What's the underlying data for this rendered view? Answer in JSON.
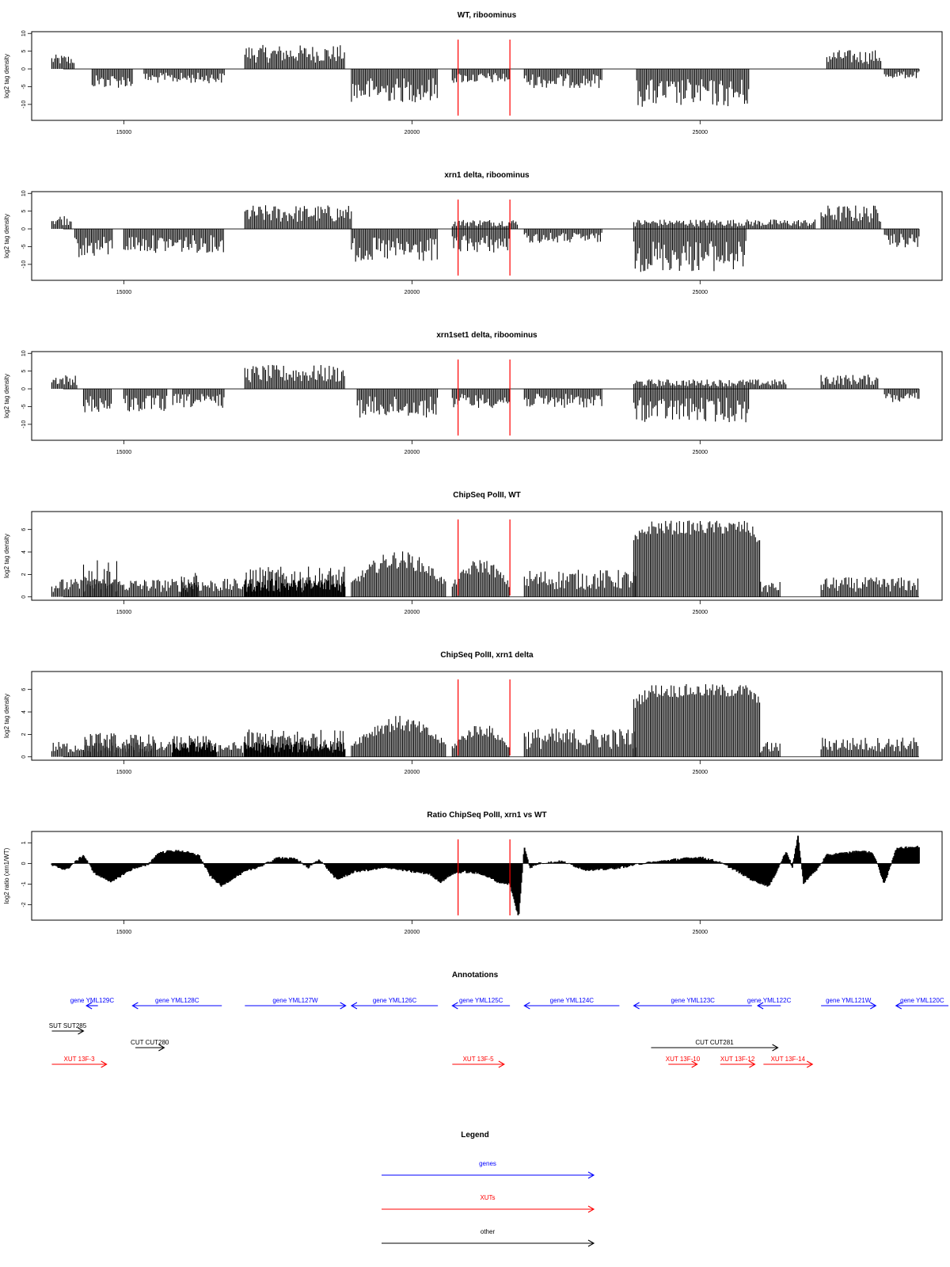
{
  "colors": {
    "gene": "#0000ff",
    "xut": "#ff0000",
    "other": "#000000",
    "marker": "#ff0000",
    "bars": "#000000"
  },
  "chart_data": [
    {
      "type": "bar",
      "title": "WT, riboominus",
      "ylabel": "log2 tag density",
      "xlim": [
        13400,
        29200
      ],
      "ylim": [
        -14.5,
        10.5
      ],
      "x_ticks": [
        15000,
        20000,
        25000
      ],
      "y_ticks": [
        -10,
        -5,
        0,
        5,
        10
      ],
      "markers": [
        20800,
        21700
      ],
      "segments": [
        {
          "x": [
            13750,
            14150
          ],
          "level": 3
        },
        {
          "x": [
            14450,
            15150
          ],
          "level": -4
        },
        {
          "x": [
            15350,
            16750
          ],
          "level": -3
        },
        {
          "x": [
            17100,
            18850
          ],
          "level": 5
        },
        {
          "x": [
            18950,
            20450
          ],
          "level": -7
        },
        {
          "x": [
            20700,
            21700
          ],
          "level": -3
        },
        {
          "x": [
            21950,
            23300
          ],
          "level": -4
        },
        {
          "x": [
            23900,
            25850
          ],
          "level": -8
        },
        {
          "x": [
            27200,
            28150
          ],
          "level": 4
        },
        {
          "x": [
            28200,
            28800
          ],
          "level": -2
        }
      ]
    },
    {
      "type": "bar",
      "title": "xrn1 delta, riboominus",
      "ylabel": "log2 tag density",
      "xlim": [
        13400,
        29200
      ],
      "ylim": [
        -14.5,
        10.5
      ],
      "x_ticks": [
        15000,
        20000,
        25000
      ],
      "y_ticks": [
        -10,
        -5,
        0,
        5,
        10
      ],
      "markers": [
        20800,
        21700
      ],
      "segments": [
        {
          "x": [
            13750,
            14100
          ],
          "level": 3
        },
        {
          "x": [
            14150,
            14800
          ],
          "level": -6
        },
        {
          "x": [
            15000,
            16750
          ],
          "level": -5
        },
        {
          "x": [
            17100,
            18950
          ],
          "level": 5
        },
        {
          "x": [
            18950,
            20450
          ],
          "level": -7
        },
        {
          "x": [
            20700,
            21850
          ],
          "level": 2
        },
        {
          "x": [
            20700,
            21700
          ],
          "level": -5
        },
        {
          "x": [
            21950,
            23300
          ],
          "level": -3
        },
        {
          "x": [
            23850,
            25800
          ],
          "level": -9
        },
        {
          "x": [
            23850,
            27000
          ],
          "level": 2
        },
        {
          "x": [
            27100,
            28150
          ],
          "level": 5
        },
        {
          "x": [
            28200,
            28800
          ],
          "level": -4
        }
      ]
    },
    {
      "type": "bar",
      "title": "xrn1set1 delta, riboominus",
      "ylabel": "log2 tag density",
      "xlim": [
        13400,
        29200
      ],
      "ylim": [
        -14.5,
        10.5
      ],
      "x_ticks": [
        15000,
        20000,
        25000
      ],
      "y_ticks": [
        -10,
        -5,
        0,
        5,
        10
      ],
      "markers": [
        20800,
        21700
      ],
      "segments": [
        {
          "x": [
            13750,
            14200
          ],
          "level": 3
        },
        {
          "x": [
            14300,
            14800
          ],
          "level": -5
        },
        {
          "x": [
            15000,
            15750
          ],
          "level": -5
        },
        {
          "x": [
            15850,
            16750
          ],
          "level": -4
        },
        {
          "x": [
            17100,
            18850
          ],
          "level": 5
        },
        {
          "x": [
            19050,
            20450
          ],
          "level": -6
        },
        {
          "x": [
            20700,
            21700
          ],
          "level": -4
        },
        {
          "x": [
            21950,
            23300
          ],
          "level": -4
        },
        {
          "x": [
            23850,
            25850
          ],
          "level": -7
        },
        {
          "x": [
            23850,
            26500
          ],
          "level": 2
        },
        {
          "x": [
            27100,
            28100
          ],
          "level": 3
        },
        {
          "x": [
            28200,
            28800
          ],
          "level": -3
        }
      ]
    },
    {
      "type": "bar",
      "title": "ChipSeq PolII, WT",
      "ylabel": "log2 tag density",
      "xlim": [
        13400,
        29200
      ],
      "ylim": [
        -0.3,
        7.6
      ],
      "x_ticks": [
        15000,
        20000,
        25000
      ],
      "y_ticks": [
        0,
        2,
        4,
        6
      ],
      "markers": [
        20800,
        21700
      ],
      "segments": [
        {
          "x": [
            13750,
            18850
          ],
          "level": 1.2
        },
        {
          "x": [
            14300,
            14900
          ],
          "level": 2.6
        },
        {
          "x": [
            16000,
            16300
          ],
          "level": 1.6
        },
        {
          "x": [
            17100,
            18850
          ],
          "level": 2.0
        },
        {
          "x": [
            18950,
            20600
          ],
          "level": 3.6,
          "shape": "dome"
        },
        {
          "x": [
            20700,
            21700
          ],
          "level": 3.0,
          "shape": "dome"
        },
        {
          "x": [
            21950,
            23900
          ],
          "level": 1.8
        },
        {
          "x": [
            23850,
            26050
          ],
          "level": 6.3,
          "shape": "plateau"
        },
        {
          "x": [
            26050,
            26400
          ],
          "level": 1.0
        },
        {
          "x": [
            27100,
            28800
          ],
          "level": 1.3
        }
      ]
    },
    {
      "type": "bar",
      "title": "ChipSeq PolII, xrn1 delta",
      "ylabel": "log2 tag density",
      "xlim": [
        13400,
        29200
      ],
      "ylim": [
        -0.3,
        7.6
      ],
      "x_ticks": [
        15000,
        20000,
        25000
      ],
      "y_ticks": [
        0,
        2,
        4,
        6
      ],
      "markers": [
        20800,
        21700
      ],
      "segments": [
        {
          "x": [
            13750,
            18850
          ],
          "level": 1.0
        },
        {
          "x": [
            14300,
            14900
          ],
          "level": 1.6
        },
        {
          "x": [
            15000,
            15550
          ],
          "level": 1.5
        },
        {
          "x": [
            15850,
            16600
          ],
          "level": 1.4
        },
        {
          "x": [
            17100,
            18850
          ],
          "level": 1.8
        },
        {
          "x": [
            18950,
            20600
          ],
          "level": 3.2,
          "shape": "dome"
        },
        {
          "x": [
            20700,
            21700
          ],
          "level": 2.6,
          "shape": "dome"
        },
        {
          "x": [
            21950,
            23900
          ],
          "level": 1.9
        },
        {
          "x": [
            23850,
            26050
          ],
          "level": 6.0,
          "shape": "plateau"
        },
        {
          "x": [
            26050,
            26400
          ],
          "level": 1.0
        },
        {
          "x": [
            27100,
            28800
          ],
          "level": 1.3
        }
      ]
    },
    {
      "type": "area",
      "title": "Ratio ChipSeq PolII, xrn1 vs WT",
      "ylabel": "log2 ratio (xrn1/WT)",
      "xlim": [
        13400,
        29200
      ],
      "ylim": [
        -2.75,
        1.55
      ],
      "x_ticks": [
        15000,
        20000,
        25000
      ],
      "y_ticks": [
        -2,
        -1,
        0,
        1
      ],
      "markers": [
        20800,
        21700
      ],
      "series": [
        {
          "x": [
            13750,
            14000,
            14300,
            14500,
            14800,
            15000,
            15200,
            15400,
            15600,
            15800,
            16000,
            16300,
            16500,
            16700,
            16900,
            17100,
            17400,
            17700,
            18000,
            18200,
            18400,
            18700,
            19000,
            19300,
            19600,
            20000,
            20300,
            20500,
            20700,
            20900,
            21200,
            21500,
            21700,
            21850,
            21950,
            22050,
            22200,
            22600,
            23000,
            23300,
            23600,
            24000,
            24300,
            24600,
            25000,
            25300,
            25600,
            25900,
            26200,
            26500,
            26600,
            26700,
            26800,
            26900,
            27000,
            27200,
            27500,
            27800,
            28000,
            28100,
            28200,
            28400,
            28600,
            28800
          ],
          "values": [
            -0.1,
            -0.3,
            0.4,
            -0.5,
            -0.9,
            -0.5,
            -0.2,
            -0.1,
            0.5,
            0.6,
            0.6,
            0.4,
            -0.6,
            -1.1,
            -0.7,
            -0.4,
            -0.1,
            0.3,
            0.2,
            -0.2,
            0.2,
            -0.8,
            -0.4,
            -0.3,
            -0.2,
            -0.4,
            -0.5,
            -0.9,
            -0.5,
            -0.4,
            -0.5,
            -0.9,
            -1.0,
            -2.6,
            0.8,
            -0.2,
            0.0,
            0.1,
            -0.3,
            -0.3,
            -0.2,
            0.0,
            0.1,
            0.2,
            0.3,
            0.1,
            -0.3,
            -0.8,
            -1.1,
            0.6,
            -0.2,
            1.3,
            -1.0,
            -0.6,
            -0.4,
            0.4,
            0.5,
            0.6,
            0.5,
            -0.2,
            -1.0,
            0.7,
            0.8,
            0.8
          ]
        }
      ]
    }
  ],
  "annotations": {
    "title": "Annotations",
    "items": [
      {
        "label": "gene YML129C",
        "kind": "gene",
        "dir": -1,
        "x": [
          14350,
          14550
        ],
        "row": 0
      },
      {
        "label": "gene YML128C",
        "kind": "gene",
        "dir": -1,
        "x": [
          15150,
          16700
        ],
        "row": 0
      },
      {
        "label": "gene YML127W",
        "kind": "gene",
        "dir": 1,
        "x": [
          17100,
          18850
        ],
        "row": 0
      },
      {
        "label": "gene YML126C",
        "kind": "gene",
        "dir": -1,
        "x": [
          18950,
          20450
        ],
        "row": 0
      },
      {
        "label": "gene YML125C",
        "kind": "gene",
        "dir": -1,
        "x": [
          20700,
          21700
        ],
        "row": 0
      },
      {
        "label": "gene YML124C",
        "kind": "gene",
        "dir": -1,
        "x": [
          21950,
          23600
        ],
        "row": 0
      },
      {
        "label": "gene YML123C",
        "kind": "gene",
        "dir": -1,
        "x": [
          23850,
          25900
        ],
        "row": 0
      },
      {
        "label": "gene YML122C",
        "kind": "gene",
        "dir": -1,
        "x": [
          26000,
          26400
        ],
        "row": 0
      },
      {
        "label": "gene YML121W",
        "kind": "gene",
        "dir": 1,
        "x": [
          27100,
          28050
        ],
        "row": 0
      },
      {
        "label": "gene YML120C",
        "kind": "gene",
        "dir": -1,
        "x": [
          28400,
          29400
        ],
        "row": 0
      },
      {
        "label": "SUT SUT285",
        "kind": "other",
        "dir": 1,
        "x": [
          13750,
          14300
        ],
        "row": 1
      },
      {
        "label": "CUT CUT280",
        "kind": "other",
        "dir": 1,
        "x": [
          15200,
          15700
        ],
        "row": 2
      },
      {
        "label": "CUT CUT281",
        "kind": "other",
        "dir": 1,
        "x": [
          24150,
          26350
        ],
        "row": 2
      },
      {
        "label": "XUT 13F-3",
        "kind": "xut",
        "dir": 1,
        "x": [
          13750,
          14700
        ],
        "row": 3
      },
      {
        "label": "XUT 13F-5",
        "kind": "xut",
        "dir": 1,
        "x": [
          20700,
          21600
        ],
        "row": 3
      },
      {
        "label": "XUT 13F-10",
        "kind": "xut",
        "dir": 1,
        "x": [
          24450,
          24950
        ],
        "row": 3
      },
      {
        "label": "XUT 13F-12",
        "kind": "xut",
        "dir": 1,
        "x": [
          25350,
          25950
        ],
        "row": 3
      },
      {
        "label": "XUT 13F-14",
        "kind": "xut",
        "dir": 1,
        "x": [
          26100,
          26950
        ],
        "row": 3
      }
    ]
  },
  "legend": {
    "title": "Legend",
    "items": [
      {
        "label": "genes",
        "kind": "gene"
      },
      {
        "label": "XUTs",
        "kind": "xut"
      },
      {
        "label": "other",
        "kind": "other"
      }
    ]
  }
}
